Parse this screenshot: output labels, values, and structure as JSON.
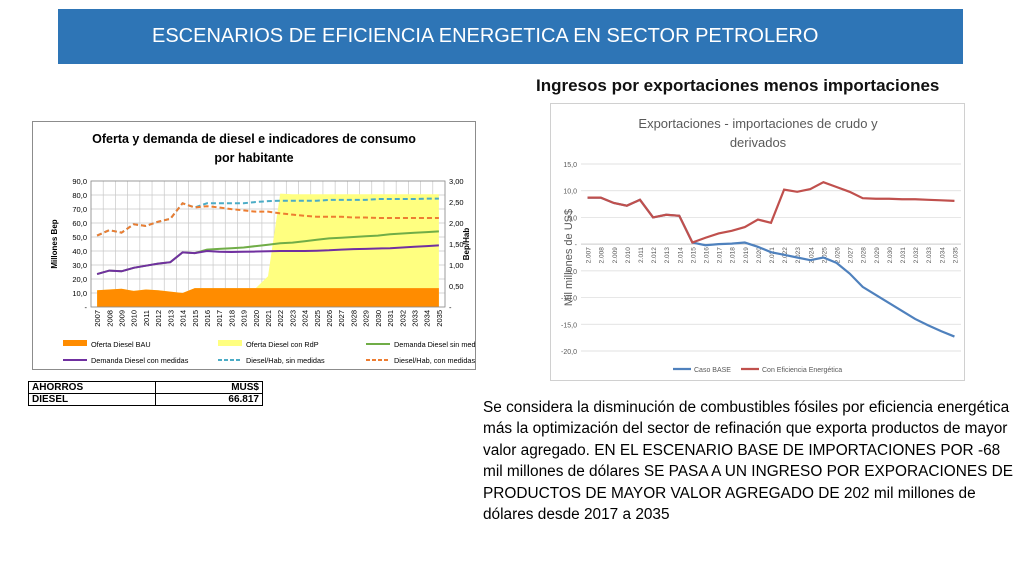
{
  "slide": {
    "title": "ESCENARIOS DE EFICIENCIA ENERGETICA EN SECTOR PETROLERO",
    "subtitle": "Ingresos por exportaciones menos importaciones",
    "description": "Se considera la disminución de combustibles fósiles por eficiencia energética más la optimización del sector de refinación que exporta productos de mayor valor agregado. EN EL ESCENARIO BASE DE IMPORTACIONES POR -68 mil millones de dólares SE PASA A UN INGRESO POR EXPORACIONES DE PRODUCTOS DE MAYOR VALOR AGREGADO DE 202 mil millones de dólares desde 2017 a 2035"
  },
  "savings_table": {
    "header": [
      "AHORROS",
      "MUS$"
    ],
    "row": [
      "DIESEL",
      "66.817"
    ]
  },
  "chart_data": [
    {
      "type": "bar",
      "title": "Oferta y demanda de diesel e indicadores de consumo por habitante",
      "ylabel": "Millones Bep",
      "y2label": "Bep/Hab",
      "ylim": [
        0,
        90
      ],
      "y2lim": [
        0,
        3
      ],
      "yticks": [
        "90,0",
        "80,0",
        "70,0",
        "60,0",
        "50,0",
        "40,0",
        "30,0",
        "20,0",
        "10,0",
        "-"
      ],
      "y2ticks": [
        "3,00",
        "2,50",
        "2,00",
        "1,50",
        "1,00",
        "0,50",
        "-"
      ],
      "categories": [
        "2007",
        "2008",
        "2009",
        "2010",
        "2011",
        "2012",
        "2013",
        "2014",
        "2015",
        "2016",
        "2017",
        "2018",
        "2019",
        "2020",
        "2021",
        "2022",
        "2023",
        "2024",
        "2025",
        "2026",
        "2027",
        "2028",
        "2029",
        "2030",
        "2031",
        "2032",
        "2033",
        "2034",
        "2035"
      ],
      "grid": true,
      "legend_position": "bottom",
      "series": [
        {
          "name": "Oferta Diesel BAU",
          "kind": "area",
          "axis": "left",
          "color": "#ff8c00",
          "values": [
            12,
            12.5,
            13,
            11.5,
            12.5,
            12,
            11,
            10,
            13.5,
            13.5,
            13.5,
            13.5,
            13.5,
            13.5,
            13.5,
            13.5,
            13.5,
            13.5,
            13.5,
            13.5,
            13.5,
            13.5,
            13.5,
            13.5,
            13.5,
            13.5,
            13.5,
            13.5,
            13.5
          ]
        },
        {
          "name": "Oferta Diesel con RdP",
          "kind": "area",
          "axis": "left",
          "color": "#ffff80",
          "values": [
            12,
            12.5,
            13,
            11.5,
            12.5,
            12,
            11,
            10,
            13.5,
            13.5,
            13.5,
            13.5,
            13.5,
            13.5,
            22,
            81,
            80.5,
            80.5,
            80.5,
            80.5,
            80.5,
            80.5,
            80.5,
            80.5,
            80.5,
            80.5,
            80.5,
            80.5,
            80.5
          ]
        },
        {
          "name": "Demanda Diesel sin medidas",
          "kind": "line",
          "axis": "left",
          "color": "#70ad47",
          "dash": false,
          "values": [
            23.5,
            26,
            25.5,
            28,
            29.5,
            31,
            32,
            39,
            38.5,
            41,
            41.5,
            42,
            42.5,
            43.5,
            44.5,
            45.5,
            46,
            47,
            48,
            49,
            49.5,
            50,
            50.5,
            51,
            52,
            52.5,
            53,
            53.5,
            54
          ]
        },
        {
          "name": "Demanda Diesel con medidas",
          "kind": "line",
          "axis": "left",
          "color": "#7030a0",
          "dash": false,
          "values": [
            23.5,
            26,
            25.5,
            28,
            29.5,
            31,
            32,
            39,
            38.5,
            40,
            39.5,
            39.3,
            39.5,
            39.6,
            39.8,
            40,
            40,
            40,
            40.2,
            40.5,
            41,
            41.3,
            41.5,
            41.8,
            42,
            42.5,
            43,
            43.5,
            44
          ]
        },
        {
          "name": "Diesel/Hab, sin medidas",
          "kind": "line",
          "axis": "right",
          "color": "#4bacc6",
          "dash": true,
          "values": [
            1.7,
            1.83,
            1.77,
            1.97,
            1.93,
            2.03,
            2.1,
            2.47,
            2.37,
            2.47,
            2.47,
            2.47,
            2.47,
            2.5,
            2.52,
            2.53,
            2.53,
            2.53,
            2.53,
            2.55,
            2.55,
            2.55,
            2.55,
            2.57,
            2.57,
            2.57,
            2.57,
            2.58,
            2.58
          ]
        },
        {
          "name": "Diesel/Hab, con medidas",
          "kind": "line",
          "axis": "right",
          "color": "#ed7d31",
          "dash": true,
          "values": [
            1.7,
            1.83,
            1.77,
            1.97,
            1.93,
            2.03,
            2.1,
            2.47,
            2.37,
            2.4,
            2.37,
            2.33,
            2.3,
            2.27,
            2.27,
            2.23,
            2.2,
            2.17,
            2.15,
            2.15,
            2.15,
            2.13,
            2.13,
            2.12,
            2.12,
            2.12,
            2.12,
            2.12,
            2.12
          ]
        }
      ],
      "legend": [
        "Oferta Diesel BAU",
        "Oferta Diesel con RdP",
        "Demanda Diesel sin medidas",
        "Demanda Diesel con medidas",
        "Diesel/Hab, sin medidas",
        "Diesel/Hab, con medidas"
      ]
    },
    {
      "type": "line",
      "title": "Exportaciones - importaciones de crudo y derivados",
      "ylabel": "Mil millones de US$",
      "ylim": [
        -20,
        15
      ],
      "yticks": [
        "15,0",
        "10,0",
        "5,0",
        "-",
        "-5,0",
        "-10,0",
        "-15,0",
        "-20,0"
      ],
      "x": [
        "2.007",
        "2.008",
        "2.009",
        "2.010",
        "2.011",
        "2.012",
        "2.013",
        "2.014",
        "2.015",
        "2.016",
        "2.017",
        "2.018",
        "2.019",
        "2.020",
        "2.021",
        "2.022",
        "2.023",
        "2.024",
        "2.025",
        "2.026",
        "2.027",
        "2.028",
        "2.029",
        "2.030",
        "2.031",
        "2.032",
        "2.033",
        "2.034",
        "2.035"
      ],
      "grid": true,
      "legend_position": "bottom",
      "series": [
        {
          "name": "Caso BASE",
          "color": "#4f81bd",
          "values": [
            8.7,
            8.7,
            7.7,
            7.2,
            8.3,
            5,
            5.5,
            5.3,
            0.3,
            -0.2,
            0,
            0.1,
            0.3,
            -0.5,
            -1.5,
            -2,
            -2.5,
            -3,
            -2.5,
            -3.5,
            -5.5,
            -8,
            -9.5,
            -11,
            -12.5,
            -14,
            -15.2,
            -16.3,
            -17.3
          ]
        },
        {
          "name": "Con Eficiencia Energética",
          "color": "#c0504d",
          "values": [
            8.7,
            8.7,
            7.7,
            7.2,
            8.3,
            5,
            5.5,
            5.3,
            0.3,
            1.2,
            2,
            2.5,
            3.2,
            4.6,
            4,
            10.2,
            9.8,
            10.3,
            11.6,
            10.7,
            9.8,
            8.6,
            8.5,
            8.5,
            8.4,
            8.4,
            8.3,
            8.2,
            8.1
          ]
        }
      ]
    }
  ]
}
